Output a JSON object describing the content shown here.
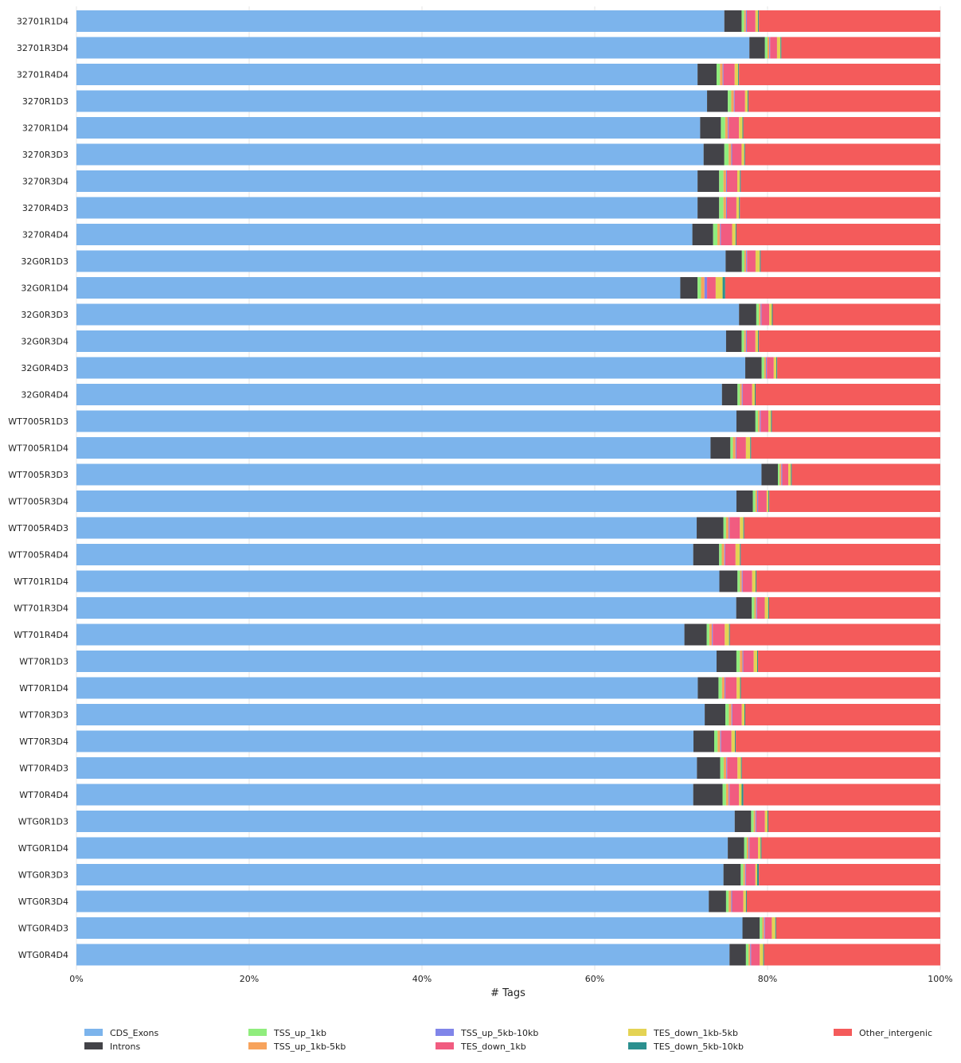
{
  "chart_data": {
    "type": "bar",
    "orientation": "horizontal",
    "stacked": true,
    "normalized": true,
    "xlabel": "# Tags",
    "ylabel": "",
    "xlim": [
      0,
      100
    ],
    "xtick_values": [
      0,
      20,
      40,
      60,
      80,
      100
    ],
    "xtick_labels": [
      "0%",
      "20%",
      "40%",
      "60%",
      "80%",
      "100%"
    ],
    "grid": "vertical",
    "legend_position": "bottom",
    "categories": [
      "32701R1D4",
      "32701R3D4",
      "32701R4D4",
      "3270R1D3",
      "3270R1D4",
      "3270R3D3",
      "3270R3D4",
      "3270R4D3",
      "3270R4D4",
      "32G0R1D3",
      "32G0R1D4",
      "32G0R3D3",
      "32G0R3D4",
      "32G0R4D3",
      "32G0R4D4",
      "WT7005R1D3",
      "WT7005R1D4",
      "WT7005R3D3",
      "WT7005R3D4",
      "WT7005R4D3",
      "WT7005R4D4",
      "WT701R1D4",
      "WT701R3D4",
      "WT701R4D4",
      "WT70R1D3",
      "WT70R1D4",
      "WT70R3D3",
      "WT70R3D4",
      "WT70R4D3",
      "WT70R4D4",
      "WTG0R1D3",
      "WTG0R1D4",
      "WTG0R3D3",
      "WTG0R3D4",
      "WTG0R4D3",
      "WTG0R4D4"
    ],
    "series": [
      {
        "name": "CDS_Exons",
        "color": "#7cb4ec",
        "values": [
          75.0,
          77.9,
          71.9,
          73.0,
          72.2,
          72.6,
          71.9,
          71.9,
          71.3,
          75.9,
          69.9,
          76.7,
          75.2,
          77.5,
          74.8,
          76.4,
          73.4,
          79.3,
          76.4,
          71.8,
          71.4,
          74.5,
          76.3,
          70.8,
          74.1,
          72.0,
          72.8,
          71.5,
          71.9,
          71.4,
          76.2,
          75.4,
          74.9,
          73.2,
          77.1,
          75.6
        ]
      },
      {
        "name": "Introns",
        "color": "#434348",
        "values": [
          2.0,
          1.8,
          2.2,
          2.4,
          2.4,
          2.4,
          2.5,
          2.5,
          2.4,
          1.9,
          2.0,
          2.0,
          1.8,
          1.9,
          1.8,
          2.2,
          2.3,
          1.9,
          1.9,
          3.1,
          3.0,
          2.1,
          1.8,
          2.6,
          2.3,
          2.4,
          2.4,
          2.4,
          2.7,
          3.4,
          1.9,
          1.9,
          2.0,
          2.0,
          2.0,
          1.9
        ]
      },
      {
        "name": "TSS_up_1kb",
        "color": "#90ed7d",
        "values": [
          0.3,
          0.3,
          0.4,
          0.4,
          0.5,
          0.5,
          0.5,
          0.5,
          0.5,
          0.3,
          0.4,
          0.3,
          0.3,
          0.3,
          0.3,
          0.3,
          0.3,
          0.2,
          0.3,
          0.3,
          0.3,
          0.3,
          0.3,
          0.3,
          0.4,
          0.4,
          0.4,
          0.4,
          0.4,
          0.4,
          0.3,
          0.3,
          0.3,
          0.3,
          0.3,
          0.3
        ]
      },
      {
        "name": "TSS_up_1kb-5kb",
        "color": "#f7a35c",
        "values": [
          0.2,
          0.2,
          0.3,
          0.3,
          0.3,
          0.3,
          0.3,
          0.3,
          0.3,
          0.2,
          0.4,
          0.2,
          0.2,
          0.2,
          0.2,
          0.2,
          0.3,
          0.2,
          0.2,
          0.3,
          0.3,
          0.2,
          0.2,
          0.3,
          0.3,
          0.3,
          0.3,
          0.3,
          0.3,
          0.3,
          0.2,
          0.2,
          0.2,
          0.3,
          0.2,
          0.2
        ]
      },
      {
        "name": "TSS_up_5kb-10kb",
        "color": "#8085e9",
        "values": [
          0.1,
          0.1,
          0.1,
          0.1,
          0.1,
          0.1,
          0.1,
          0.1,
          0.1,
          0.1,
          0.3,
          0.1,
          0.1,
          0.1,
          0.1,
          0.1,
          0.1,
          0.1,
          0.1,
          0.1,
          0.1,
          0.1,
          0.1,
          0.1,
          0.1,
          0.1,
          0.1,
          0.1,
          0.1,
          0.1,
          0.1,
          0.1,
          0.1,
          0.1,
          0.1,
          0.1
        ]
      },
      {
        "name": "TES_down_1kb",
        "color": "#f15c80",
        "values": [
          1.0,
          0.8,
          1.3,
          1.2,
          1.2,
          1.1,
          1.2,
          1.1,
          1.3,
          1.0,
          1.0,
          0.9,
          1.0,
          0.8,
          1.1,
          0.9,
          1.1,
          0.7,
          1.0,
          1.2,
          1.2,
          1.1,
          0.9,
          1.4,
          1.2,
          1.3,
          1.1,
          1.2,
          1.2,
          1.1,
          1.0,
          1.0,
          1.1,
          1.3,
          0.8,
          1.0
        ]
      },
      {
        "name": "TES_down_1kb-5kb",
        "color": "#e4d354",
        "values": [
          0.3,
          0.4,
          0.4,
          0.3,
          0.4,
          0.3,
          0.3,
          0.3,
          0.4,
          0.5,
          0.8,
          0.3,
          0.3,
          0.3,
          0.3,
          0.3,
          0.5,
          0.3,
          0.2,
          0.4,
          0.5,
          0.4,
          0.4,
          0.5,
          0.4,
          0.4,
          0.3,
          0.4,
          0.4,
          0.3,
          0.3,
          0.3,
          0.2,
          0.3,
          0.4,
          0.4
        ]
      },
      {
        "name": "TES_down_5kb-10kb",
        "color": "#2b908f",
        "values": [
          0.1,
          0.1,
          0.1,
          0.1,
          0.1,
          0.1,
          0.1,
          0.1,
          0.1,
          0.1,
          0.3,
          0.1,
          0.1,
          0.1,
          0.1,
          0.1,
          0.1,
          0.1,
          0.1,
          0.1,
          0.1,
          0.1,
          0.1,
          0.1,
          0.1,
          0.1,
          0.1,
          0.1,
          0.1,
          0.2,
          0.1,
          0.1,
          0.2,
          0.1,
          0.1,
          0.1
        ]
      },
      {
        "name": "Other_intergenic",
        "color": "#f45b5b",
        "values": [
          21.0,
          18.4,
          23.3,
          22.2,
          22.8,
          22.6,
          23.1,
          23.2,
          23.6,
          21.0,
          24.9,
          19.4,
          21.0,
          18.9,
          21.4,
          19.5,
          21.9,
          17.2,
          19.8,
          22.7,
          23.1,
          21.3,
          19.8,
          24.5,
          21.1,
          23.1,
          22.6,
          23.7,
          23.0,
          22.8,
          19.9,
          20.7,
          21.0,
          22.4,
          19.0,
          20.4
        ]
      }
    ]
  }
}
